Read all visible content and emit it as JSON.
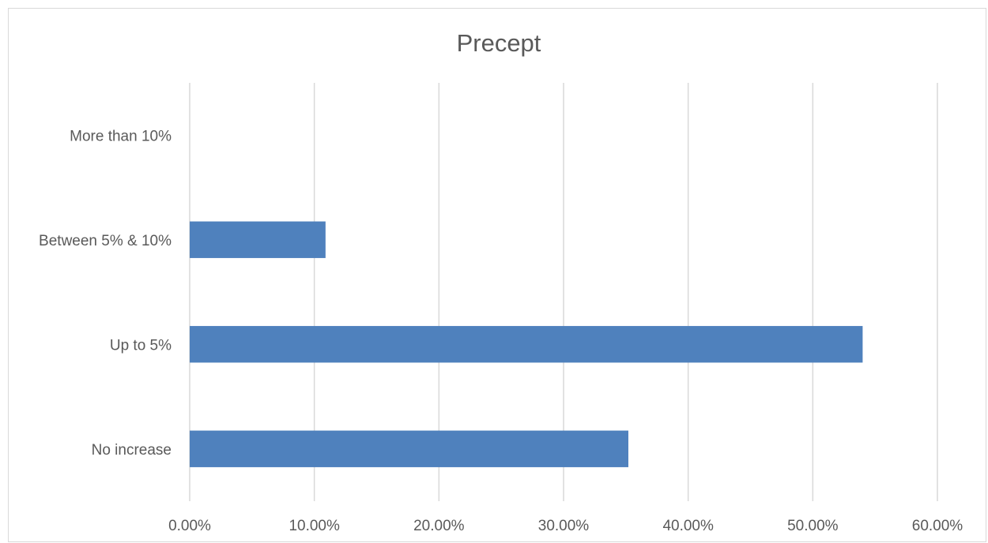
{
  "chart_data": {
    "type": "bar",
    "orientation": "horizontal",
    "title": "Precept",
    "categories": [
      "No increase",
      "Up to 5%",
      "Between 5% & 10%",
      "More than 10%"
    ],
    "values": [
      0.352,
      0.54,
      0.109,
      0
    ],
    "x_tick_labels": [
      "0.00%",
      "10.00%",
      "20.00%",
      "30.00%",
      "40.00%",
      "50.00%",
      "60.00%"
    ],
    "xlim": [
      0,
      0.6
    ],
    "grid": true,
    "legend": "none",
    "xlabel": "",
    "ylabel": "",
    "colors": {
      "bar": "#4f81bd",
      "grid": "#d9d9d9",
      "text": "#595959",
      "border": "#d9d9d9"
    }
  }
}
